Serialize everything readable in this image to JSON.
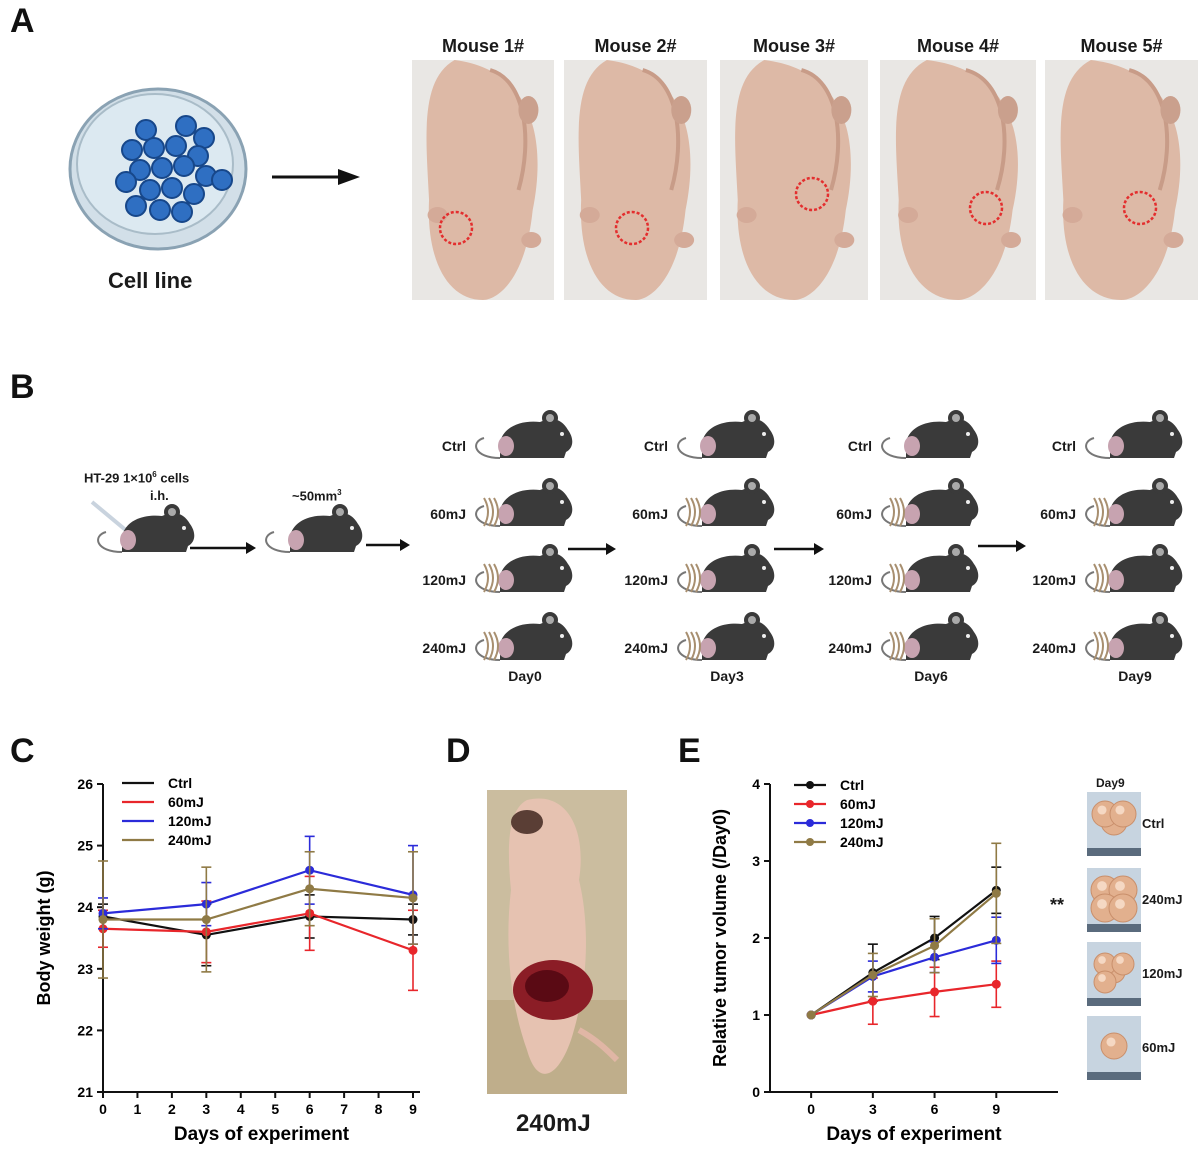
{
  "panels": {
    "a": "A",
    "b": "B",
    "c": "C",
    "d": "D",
    "e": "E"
  },
  "panel_a": {
    "cell_line_label": "Cell line",
    "mice": [
      "Mouse 1#",
      "Mouse 2#",
      "Mouse 3#",
      "Mouse 4#",
      "Mouse 5#"
    ]
  },
  "panel_b": {
    "injection_label": "HT-29 1×10",
    "injection_exp": "6",
    "injection_suffix": " cells",
    "injection_route": "i.h.",
    "volume_label": "~50mm",
    "volume_exp": "3",
    "groups": [
      "Ctrl",
      "60mJ",
      "120mJ",
      "240mJ"
    ],
    "days": [
      "Day0",
      "Day3",
      "Day6",
      "Day9"
    ]
  },
  "panel_d": {
    "caption": "240mJ"
  },
  "panel_e": {
    "photo_title": "Day9",
    "photo_labels": [
      "Ctrl",
      "240mJ",
      "120mJ",
      "60mJ"
    ],
    "significance": "**"
  },
  "colors": {
    "ctrl": "#111111",
    "60mJ": "#e8262b",
    "120mJ": "#2b2bd9",
    "240mJ": "#8f7a45"
  },
  "chart_data": [
    {
      "type": "line",
      "xlabel": "Days of experiment",
      "ylabel": "Body weight (g)",
      "xlim": [
        0,
        9
      ],
      "ylim": [
        21,
        26
      ],
      "xticks": [
        "0",
        "1",
        "2",
        "3",
        "4",
        "5",
        "6",
        "7",
        "8",
        "9"
      ],
      "yticks": [
        "21",
        "22",
        "23",
        "24",
        "25",
        "26"
      ],
      "legend": "top-left",
      "x": [
        0,
        3,
        6,
        9
      ],
      "series": [
        {
          "name": "Ctrl",
          "values": [
            23.85,
            23.55,
            23.85,
            23.8
          ],
          "err": [
            0.2,
            0.5,
            0.35,
            0.25
          ]
        },
        {
          "name": "60mJ",
          "values": [
            23.65,
            23.6,
            23.9,
            23.3
          ],
          "err": [
            0.3,
            0.5,
            0.6,
            0.65
          ]
        },
        {
          "name": "120mJ",
          "values": [
            23.9,
            24.05,
            24.6,
            24.2
          ],
          "err": [
            0.25,
            0.35,
            0.55,
            0.8
          ]
        },
        {
          "name": "240mJ",
          "values": [
            23.8,
            23.8,
            24.3,
            24.15
          ],
          "err": [
            0.95,
            0.85,
            0.6,
            0.75
          ]
        }
      ]
    },
    {
      "type": "line",
      "xlabel": "Days of experiment",
      "ylabel": "Relative tumor volume (/Day0)",
      "xlim": [
        -2,
        12
      ],
      "ylim": [
        0,
        4
      ],
      "xticks": [
        "0",
        "3",
        "6",
        "9"
      ],
      "yticks": [
        "0",
        "1",
        "2",
        "3",
        "4"
      ],
      "legend": "top-left",
      "x": [
        0,
        3,
        6,
        9
      ],
      "series": [
        {
          "name": "Ctrl",
          "values": [
            1.0,
            1.55,
            2.0,
            2.62
          ],
          "err": [
            0,
            0.37,
            0.28,
            0.3
          ]
        },
        {
          "name": "60mJ",
          "values": [
            1.0,
            1.18,
            1.3,
            1.4
          ],
          "err": [
            0,
            0.3,
            0.32,
            0.3
          ]
        },
        {
          "name": "120mJ",
          "values": [
            1.0,
            1.5,
            1.75,
            1.97
          ],
          "err": [
            0,
            0.2,
            0.2,
            0.3
          ]
        },
        {
          "name": "240mJ",
          "values": [
            1.0,
            1.52,
            1.9,
            2.58
          ],
          "err": [
            0,
            0.28,
            0.35,
            0.65
          ]
        }
      ]
    }
  ]
}
